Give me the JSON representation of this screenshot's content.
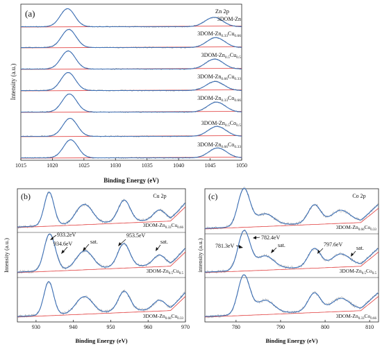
{
  "chart_data": [
    {
      "panel": "(a)",
      "type": "line",
      "element_label": "Zn 2p",
      "xlabel": "Binding Energy (eV)",
      "ylabel": "Intensity (a.u.)",
      "xlim": [
        1015,
        1050
      ],
      "xticks": [
        1015,
        1020,
        1025,
        1030,
        1035,
        1040,
        1045,
        1050
      ],
      "peaks": [
        1022.5,
        1045.8
      ],
      "series": [
        {
          "name": "3DOM-Zn",
          "peak1": 1022.4,
          "peak2": 1045.6,
          "h1": 1.0,
          "h2": 0.52
        },
        {
          "name": "3DOM-Zn0.33Cu0.66",
          "peak1": 1022.6,
          "peak2": 1045.9,
          "h1": 1.0,
          "h2": 0.55
        },
        {
          "name": "3DOM-Zn0.5Cu0.5",
          "peak1": 1022.5,
          "peak2": 1045.7,
          "h1": 1.0,
          "h2": 0.55
        },
        {
          "name": "3DOM-Zn0.66Cu0.33",
          "peak1": 1022.5,
          "peak2": 1045.8,
          "h1": 1.0,
          "h2": 0.5
        },
        {
          "name": "3DOM-Zn0.33Co0.66",
          "peak1": 1022.7,
          "peak2": 1046.0,
          "h1": 1.0,
          "h2": 0.55
        },
        {
          "name": "3DOM-Zn0.5Co0.5",
          "peak1": 1022.8,
          "peak2": 1046.1,
          "h1": 1.0,
          "h2": 0.55
        },
        {
          "name": "3DOM-Zn0.66Co0.33",
          "peak1": 1022.9,
          "peak2": 1046.2,
          "h1": 1.0,
          "h2": 0.55
        }
      ]
    },
    {
      "panel": "(b)",
      "type": "line",
      "element_label": "Cu 2p",
      "xlabel": "Binding Energy (eV)",
      "ylabel": "Intensity (a.u.)",
      "xlim": [
        925,
        970
      ],
      "xticks": [
        930,
        940,
        950,
        960,
        970
      ],
      "series": [
        {
          "name": "3DOM-Zn0.33Cu0.66",
          "peaks": [
            [
              933.5,
              1.0
            ],
            [
              941.8,
              0.35
            ],
            [
              944.0,
              0.35
            ],
            [
              953.6,
              0.65
            ],
            [
              963.0,
              0.3
            ]
          ]
        },
        {
          "name": "3DOM-Zn0.5Cu0.5",
          "peaks": [
            [
              933.2,
              0.8
            ],
            [
              934.6,
              0.45
            ],
            [
              941.8,
              0.3
            ],
            [
              944.0,
              0.35
            ],
            [
              953.5,
              0.7
            ],
            [
              963.0,
              0.3
            ]
          ]
        },
        {
          "name": "3DOM-Zn0.66Cu0.33",
          "peaks": [
            [
              933.4,
              1.0
            ],
            [
              941.8,
              0.3
            ],
            [
              944.0,
              0.3
            ],
            [
              953.6,
              0.6
            ],
            [
              963.0,
              0.28
            ]
          ]
        }
      ],
      "annotations": [
        "933.2eV",
        "934.6eV",
        "sat.",
        "953.5eV",
        "sat."
      ]
    },
    {
      "panel": "(c)",
      "type": "line",
      "element_label": "Co 2p",
      "xlabel": "Binding Energy (eV)",
      "ylabel": "intensity (a.u.)",
      "xlim": [
        773,
        812
      ],
      "xticks": [
        780,
        790,
        800,
        810
      ],
      "series": [
        {
          "name": "3DOM-Zn0.66Co0.33",
          "peaks": [
            [
              781.3,
              0.7
            ],
            [
              782.4,
              0.55
            ],
            [
              786.5,
              0.35
            ],
            [
              797.6,
              0.55
            ],
            [
              803.5,
              0.35
            ]
          ]
        },
        {
          "name": "3DOM-Zn0.5Co0.5",
          "peaks": [
            [
              781.3,
              0.7
            ],
            [
              782.4,
              0.6
            ],
            [
              786.5,
              0.4
            ],
            [
              797.6,
              0.55
            ],
            [
              803.5,
              0.35
            ]
          ]
        },
        {
          "name": "3DOM-Zn0.33Co0.66",
          "peaks": [
            [
              781.3,
              0.75
            ],
            [
              782.4,
              0.55
            ],
            [
              786.5,
              0.4
            ],
            [
              797.6,
              0.55
            ],
            [
              803.5,
              0.35
            ]
          ]
        }
      ],
      "annotations": [
        "781.3eV",
        "782.4eV",
        "sat.",
        "797.6eV",
        "sat."
      ]
    }
  ],
  "colors": {
    "fit": "#3b6fb6",
    "baseline": "#e03a3a",
    "raw": "#8c8c8c",
    "axis": "#222222"
  }
}
